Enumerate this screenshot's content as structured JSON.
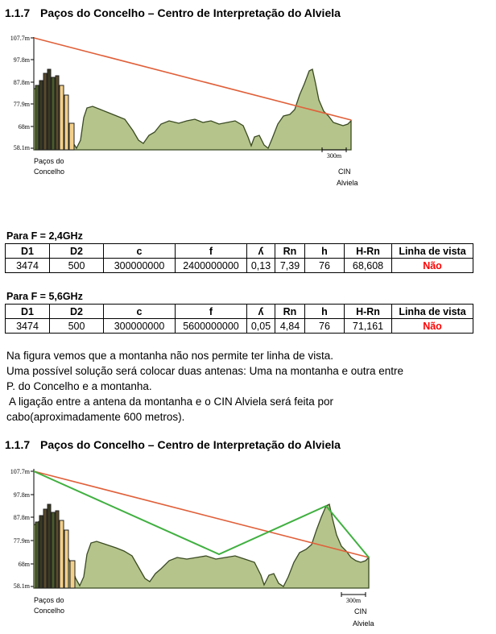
{
  "section1": {
    "number": "1.1.7",
    "title": "Paços do Concelho – Centro de Interpretação do Alviela"
  },
  "section2": {
    "number": "1.1.7",
    "title": "Paços do Concelho – Centro de Interpretação do Alviela"
  },
  "profile": {
    "y_ticks": [
      "107.7m",
      "97.8m",
      "87.8m",
      "77.9m",
      "68m",
      "58.1m"
    ],
    "scale_label": "300m",
    "start_label": [
      "Paços do",
      "Concelho"
    ],
    "end_label": [
      "CIN",
      "Alviela"
    ],
    "colors": {
      "terrain": "#b5c48b",
      "line_of_sight": "#e0603a",
      "relay_path": "#40b040",
      "buildings_light": "#f3d08a"
    }
  },
  "table_24": {
    "caption": "Para F = 2,4GHz",
    "headers": [
      "D1",
      "D2",
      "c",
      "f",
      "ʎ",
      "Rn",
      "h",
      "H-Rn",
      "Linha de vista"
    ],
    "row": [
      "3474",
      "500",
      "300000000",
      "2400000000",
      "0,13",
      "7,39",
      "76",
      "68,608",
      "Não"
    ]
  },
  "table_56": {
    "caption": "Para F = 5,6GHz",
    "headers": [
      "D1",
      "D2",
      "c",
      "f",
      "ʎ",
      "Rn",
      "h",
      "H-Rn",
      "Linha de vista"
    ],
    "row": [
      "3474",
      "500",
      "300000000",
      "5600000000",
      "0,05",
      "4,84",
      "76",
      "71,161",
      "Não"
    ]
  },
  "paragraph": [
    "Na figura vemos que a montanha não nos permite ter linha de vista.",
    "Uma possível solução será colocar duas antenas: Uma na montanha e outra entre",
    "P. do Concelho e a montanha.",
    " A ligação entre a antena da montanha e o CIN Alviela será feita por",
    "cabo(aproximadamente 600 metros)."
  ]
}
